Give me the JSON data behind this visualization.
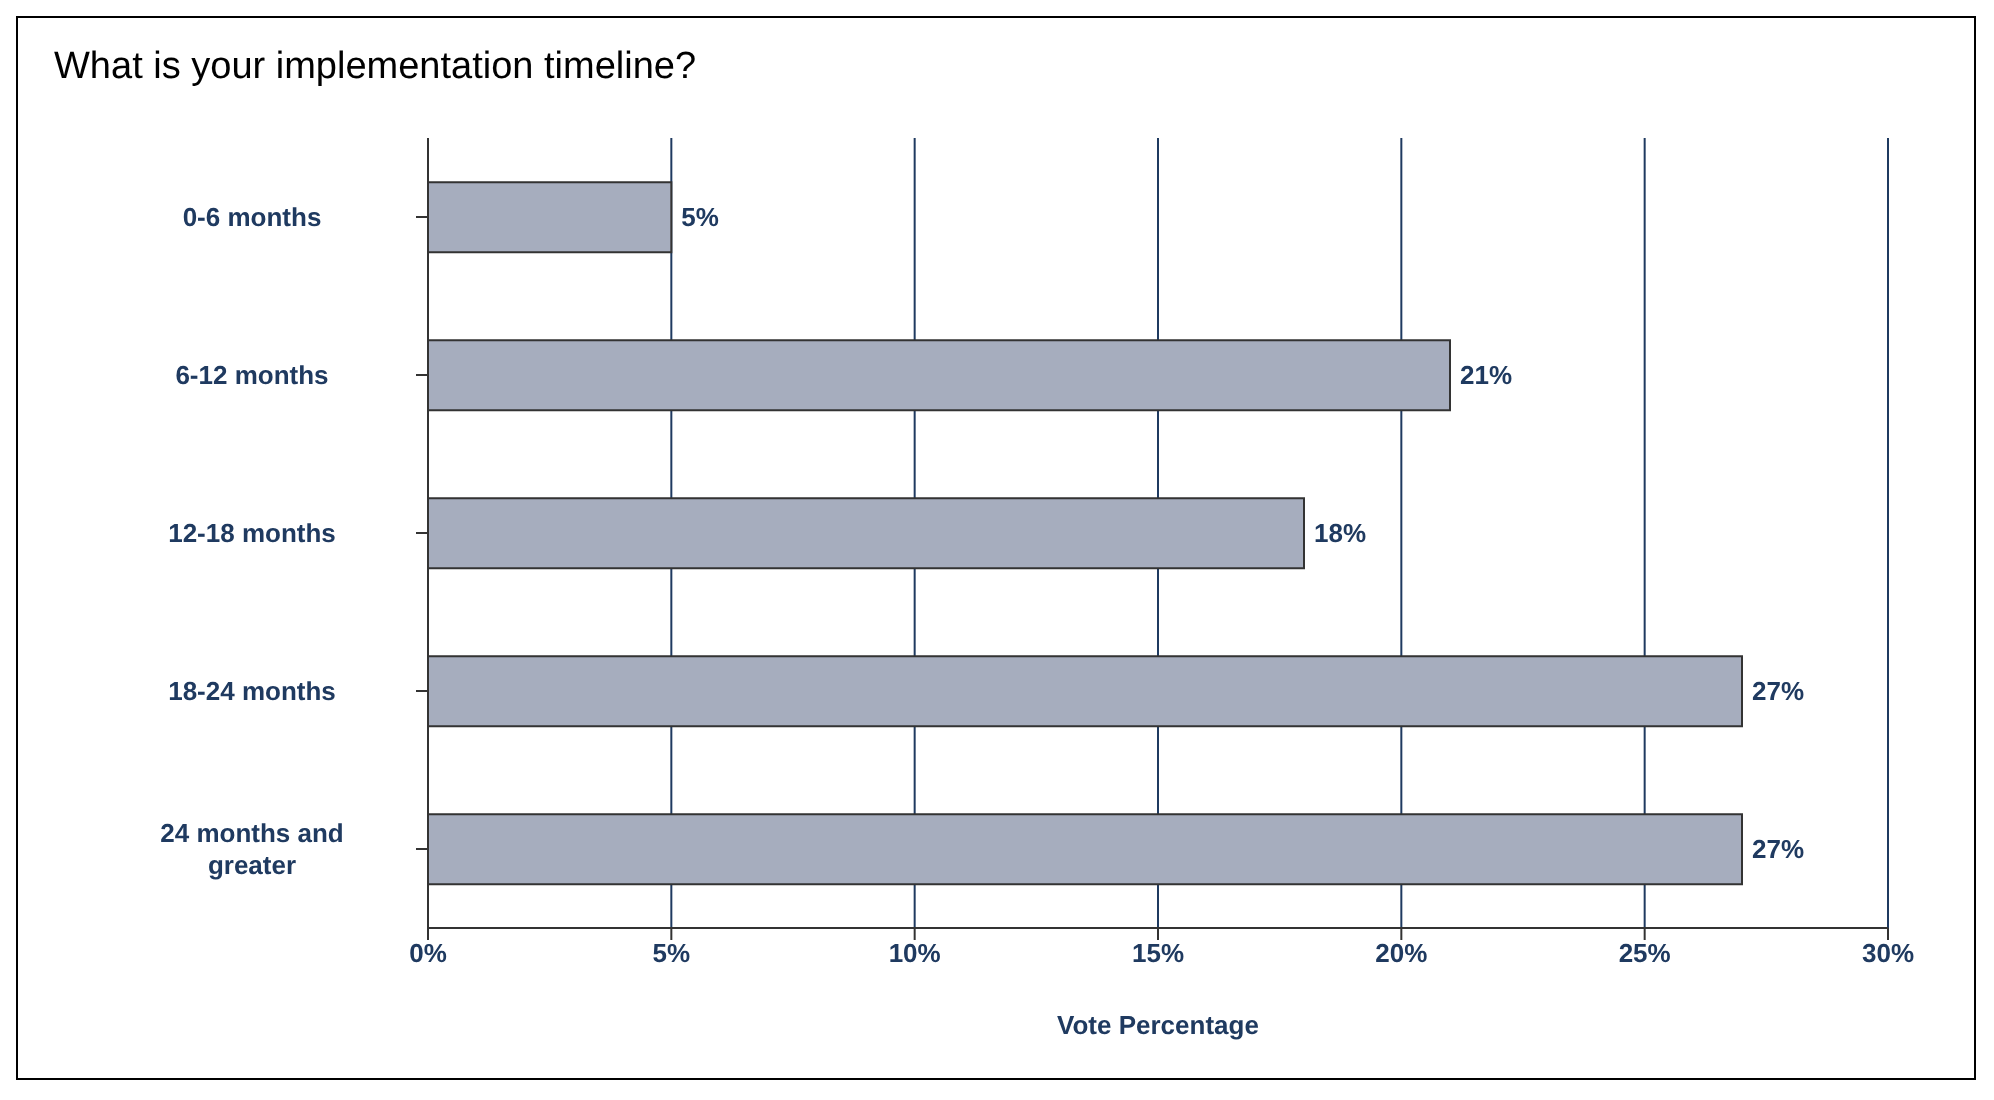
{
  "chart_data": {
    "type": "bar",
    "orientation": "horizontal",
    "title": "What is your implementation timeline?",
    "xlabel": "Vote Percentage",
    "categories": [
      "0-6 months",
      "6-12 months",
      "12-18 months",
      "18-24 months",
      "24 months and greater"
    ],
    "values": [
      5,
      21,
      18,
      27,
      27
    ],
    "color": "#a6adbe",
    "value_labels": [
      "5%",
      "21%",
      "18%",
      "27%",
      "27%"
    ],
    "xlim": [
      0,
      30
    ],
    "xticks": [
      {
        "value": 0,
        "label": "0%"
      },
      {
        "value": 5,
        "label": "5%"
      },
      {
        "value": 10,
        "label": "10%"
      },
      {
        "value": 15,
        "label": "15%"
      },
      {
        "value": 20,
        "label": "20%"
      },
      {
        "value": 25,
        "label": "25%"
      },
      {
        "value": 30,
        "label": "30%"
      }
    ],
    "grid": "x",
    "legend": false
  }
}
